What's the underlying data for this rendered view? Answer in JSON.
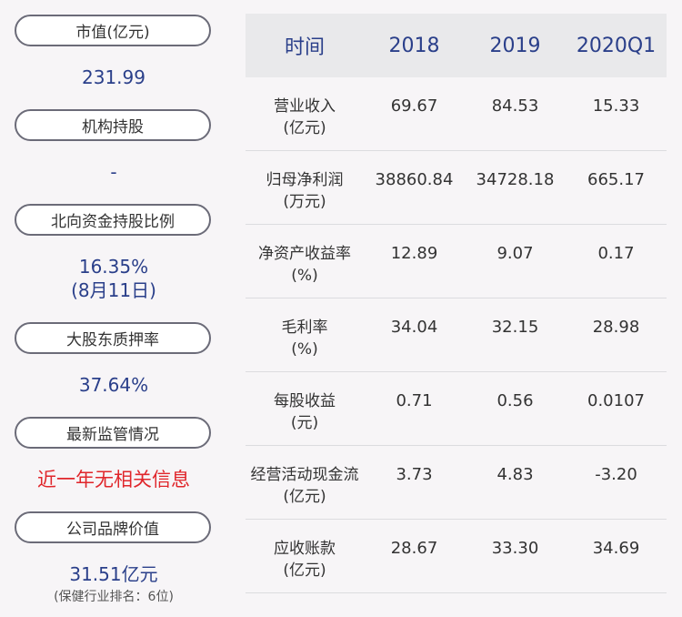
{
  "left_panel": {
    "items": [
      {
        "label": "市值(亿元)",
        "value": "231.99"
      },
      {
        "label": "机构持股",
        "value": "-"
      },
      {
        "label": "北向资金持股比例",
        "value": "16.35%",
        "value2": "(8月11日)"
      },
      {
        "label": "大股东质押率",
        "value": "37.64%"
      },
      {
        "label": "最新监管情况",
        "value": "近一年无相关信息"
      },
      {
        "label": "公司品牌价值",
        "value": "31.51亿元",
        "note": "(保健行业排名：6位)"
      }
    ]
  },
  "table": {
    "headers": [
      "时间",
      "2018",
      "2019",
      "2020Q1"
    ],
    "rows": [
      {
        "label": "营业收入",
        "unit": "(亿元)",
        "values": [
          "69.67",
          "84.53",
          "15.33"
        ]
      },
      {
        "label": "归母净利润",
        "unit": "(万元)",
        "values": [
          "38860.84",
          "34728.18",
          "665.17"
        ]
      },
      {
        "label": "净资产收益率",
        "unit": "(%)",
        "values": [
          "12.89",
          "9.07",
          "0.17"
        ]
      },
      {
        "label": "毛利率",
        "unit": "(%)",
        "values": [
          "34.04",
          "32.15",
          "28.98"
        ]
      },
      {
        "label": "每股收益",
        "unit": "(元)",
        "values": [
          "0.71",
          "0.56",
          "0.0107"
        ]
      },
      {
        "label": "经营活动现金流",
        "unit": "(亿元)",
        "values": [
          "3.73",
          "4.83",
          "-3.20"
        ]
      },
      {
        "label": "应收账款",
        "unit": "(亿元)",
        "values": [
          "28.67",
          "33.30",
          "34.69"
        ]
      }
    ]
  },
  "colors": {
    "accent_blue": "#2a3f8a",
    "alert_red": "#e0262b",
    "header_bg": "#e9e9eb"
  }
}
